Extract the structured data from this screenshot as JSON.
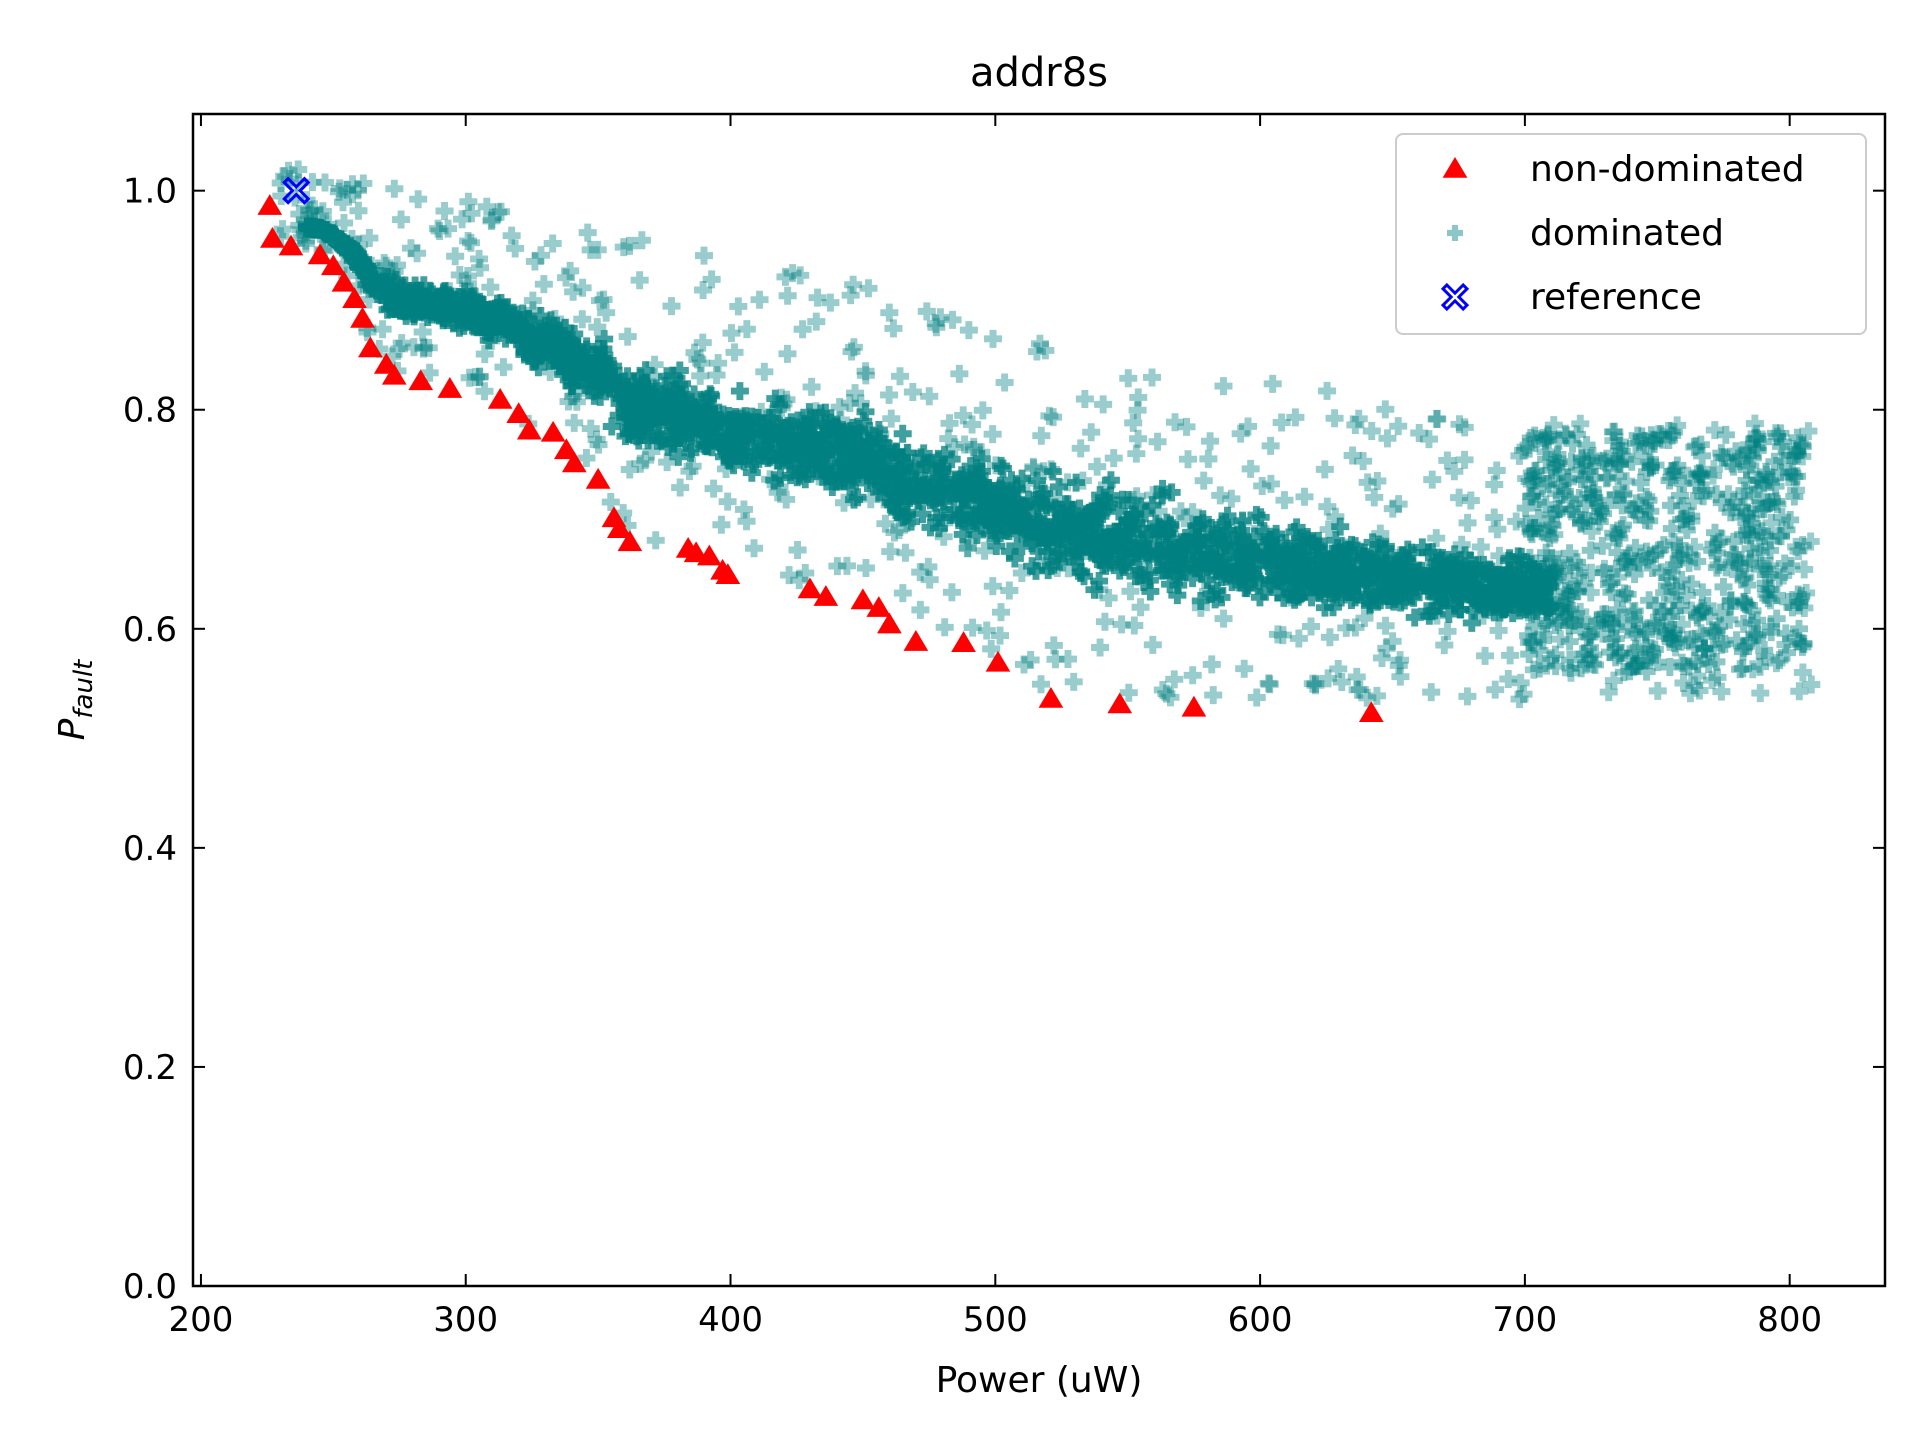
{
  "chart_data": {
    "type": "scatter",
    "title": "addr8s",
    "xlabel": "Power (uW)",
    "ylabel_main": "P",
    "ylabel_sub": "fault",
    "xlim": [
      197,
      836
    ],
    "ylim": [
      0.0,
      1.07
    ],
    "xticks": [
      200,
      300,
      400,
      500,
      600,
      700,
      800
    ],
    "yticks": [
      0.0,
      0.2,
      0.4,
      0.6,
      0.8,
      1.0
    ],
    "xtick_labels": [
      "200",
      "300",
      "400",
      "500",
      "600",
      "700",
      "800"
    ],
    "ytick_labels": [
      "0.0",
      "0.2",
      "0.4",
      "0.6",
      "0.8",
      "1.0"
    ],
    "grid": false,
    "legend_position": "top-right",
    "colors": {
      "non_dominated": "#ff0000",
      "dominated": "#008080",
      "reference": "#0000ff"
    },
    "series": [
      {
        "name": "non-dominated",
        "marker": "triangle",
        "points": [
          [
            226,
            0.985
          ],
          [
            227,
            0.955
          ],
          [
            234,
            0.948
          ],
          [
            245,
            0.94
          ],
          [
            250,
            0.93
          ],
          [
            254,
            0.915
          ],
          [
            258,
            0.9
          ],
          [
            261,
            0.882
          ],
          [
            264,
            0.855
          ],
          [
            270,
            0.84
          ],
          [
            273,
            0.83
          ],
          [
            283,
            0.825
          ],
          [
            294,
            0.818
          ],
          [
            313,
            0.808
          ],
          [
            320,
            0.795
          ],
          [
            324,
            0.78
          ],
          [
            333,
            0.778
          ],
          [
            338,
            0.762
          ],
          [
            341,
            0.75
          ],
          [
            350,
            0.735
          ],
          [
            356,
            0.7
          ],
          [
            358,
            0.69
          ],
          [
            362,
            0.678
          ],
          [
            384,
            0.672
          ],
          [
            387,
            0.668
          ],
          [
            392,
            0.665
          ],
          [
            397,
            0.652
          ],
          [
            399,
            0.648
          ],
          [
            430,
            0.635
          ],
          [
            436,
            0.628
          ],
          [
            450,
            0.625
          ],
          [
            456,
            0.618
          ],
          [
            460,
            0.603
          ],
          [
            470,
            0.587
          ],
          [
            488,
            0.586
          ],
          [
            501,
            0.568
          ],
          [
            521,
            0.535
          ],
          [
            547,
            0.53
          ],
          [
            575,
            0.527
          ],
          [
            642,
            0.522
          ]
        ]
      },
      {
        "name": "dominated",
        "marker": "plus",
        "points": []
      },
      {
        "name": "reference",
        "marker": "x",
        "points": [
          [
            236,
            1.0
          ]
        ]
      }
    ]
  }
}
